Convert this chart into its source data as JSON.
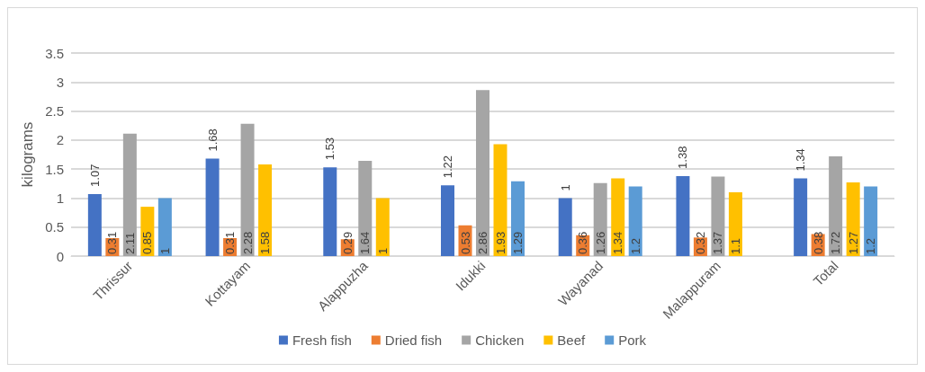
{
  "chart_data": {
    "type": "bar",
    "ylabel": "kilograms",
    "categories": [
      "Thrissur",
      "Kottayam",
      "Alappuzha",
      "Idukki",
      "Wayanad",
      "Malappuram",
      "Total"
    ],
    "series": [
      {
        "name": "Fresh fish",
        "color": "#4472c4",
        "values": [
          1.07,
          1.68,
          1.53,
          1.22,
          1,
          1.38,
          1.34
        ]
      },
      {
        "name": "Dried fish",
        "color": "#ed7d31",
        "values": [
          0.31,
          0.31,
          0.29,
          0.53,
          0.36,
          0.32,
          0.38
        ]
      },
      {
        "name": "Chicken",
        "color": "#a5a5a5",
        "values": [
          2.11,
          2.28,
          1.64,
          2.86,
          1.26,
          1.37,
          1.72
        ]
      },
      {
        "name": "Beef",
        "color": "#ffc000",
        "values": [
          0.85,
          1.58,
          1,
          1.93,
          1.34,
          1.1,
          1.27
        ]
      },
      {
        "name": "Pork",
        "color": "#5b9bd5",
        "values": [
          1,
          null,
          null,
          1.29,
          1.2,
          null,
          1.2
        ]
      }
    ],
    "ylim": [
      0,
      3.5
    ],
    "yticks": [
      0,
      0.5,
      1,
      1.5,
      2,
      2.5,
      3,
      3.5
    ],
    "grid": "y",
    "legend": "bottom",
    "data_labels": true
  }
}
